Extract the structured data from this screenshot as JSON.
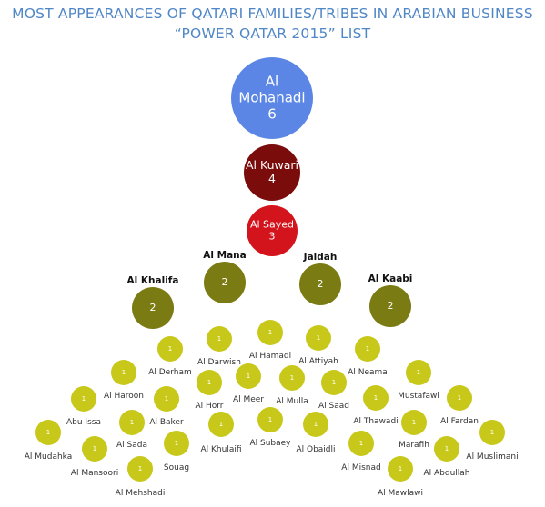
{
  "chart_data": {
    "type": "bubble",
    "title": "MOST APPEARANCES OF QATARI FAMILIES/TRIBES IN ARABIAN BUSINESS",
    "subtitle": "“POWER QATAR 2015” LIST",
    "series": [
      {
        "name": "Al Mohanadi",
        "value": 6
      },
      {
        "name": "Al Kuwari",
        "value": 4
      },
      {
        "name": "Al Sayed",
        "value": 3
      },
      {
        "name": "Al Mana",
        "value": 2
      },
      {
        "name": "Jaidah",
        "value": 2
      },
      {
        "name": "Al Khalifa",
        "value": 2
      },
      {
        "name": "Al Kaabi",
        "value": 2
      },
      {
        "name": "Al Hamadi",
        "value": 1
      },
      {
        "name": "Al Darwish",
        "value": 1
      },
      {
        "name": "Al Attiyah",
        "value": 1
      },
      {
        "name": "Al Derham",
        "value": 1
      },
      {
        "name": "Al Neama",
        "value": 1
      },
      {
        "name": "Al Horr",
        "value": 1
      },
      {
        "name": "Al Meer",
        "value": 1
      },
      {
        "name": "Al Mulla",
        "value": 1
      },
      {
        "name": "Al Saad",
        "value": 1
      },
      {
        "name": "Al Haroon",
        "value": 1
      },
      {
        "name": "Mustafawi",
        "value": 1
      },
      {
        "name": "Al Baker",
        "value": 1
      },
      {
        "name": "Al Thawadi",
        "value": 1
      },
      {
        "name": "Abu Issa",
        "value": 1
      },
      {
        "name": "Al Fardan",
        "value": 1
      },
      {
        "name": "Al Subaey",
        "value": 1
      },
      {
        "name": "Al Khulaifi",
        "value": 1
      },
      {
        "name": "Al Sada",
        "value": 1
      },
      {
        "name": "Marafih",
        "value": 1
      },
      {
        "name": "Al Obaidli",
        "value": 1
      },
      {
        "name": "Al Mudahka",
        "value": 1
      },
      {
        "name": "Al Muslimani",
        "value": 1
      },
      {
        "name": "Souag",
        "value": 1
      },
      {
        "name": "Al Mansoori",
        "value": 1
      },
      {
        "name": "Al Misnad",
        "value": 1
      },
      {
        "name": "Al Abdullah",
        "value": 1
      },
      {
        "name": "Al Mehshadi",
        "value": 1
      },
      {
        "name": "Al Mawlawi",
        "value": 1
      }
    ],
    "colors": {
      "6": "#5b86e5",
      "4": "#7a0c0c",
      "3": "#d4141c",
      "2": "#7b7b14",
      "1": "#c8c81a"
    },
    "title_color": "#4f86c6"
  }
}
